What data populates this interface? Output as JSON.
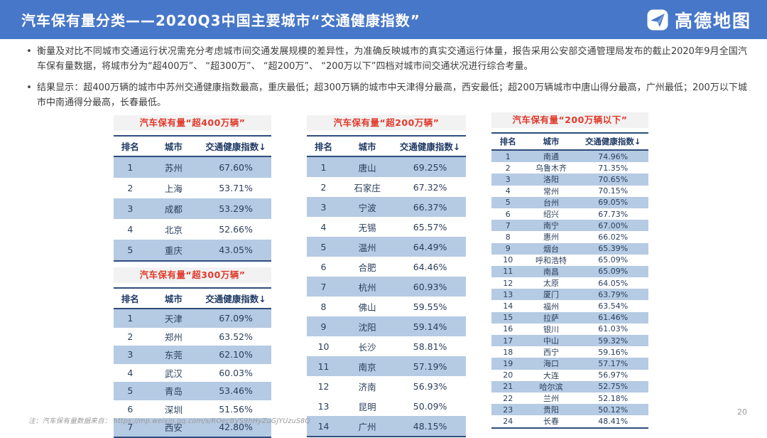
{
  "header": {
    "title": "汽车保有量分类——2020Q3中国主要城市“交通健康指数”",
    "logo_text": "高德地图"
  },
  "bullets": [
    "衡量及对比不同城市交通运行状况需充分考虑城市间交通发展规模的差异性，为准确反映城市的真实交通运行体量，报告采用公安部交通管理局发布的截止2020年9月全国汽车保有量数据，将城市分为“超400万”、 “超300万”、 “超200万”、 “200万以下”四档对城市间交通状况进行综合考量。",
    "结果显示：超400万辆的城市中苏州交通健康指数最高，重庆最低；超300万辆的城市中天津得分最高，西安最低；超200万辆城市中唐山得分最高，广州最低；200万以下城市中南通得分最高，长春最低。"
  ],
  "tables": [
    {
      "title": "汽车保有量“超400万辆”",
      "columns": [
        "排名",
        "城市",
        "交通健康指数↓"
      ],
      "rows": [
        [
          "1",
          "苏州",
          "67.60%"
        ],
        [
          "2",
          "上海",
          "53.71%"
        ],
        [
          "3",
          "成都",
          "53.29%"
        ],
        [
          "4",
          "北京",
          "52.66%"
        ],
        [
          "5",
          "重庆",
          "43.05%"
        ]
      ]
    },
    {
      "title": "汽车保有量“超300万辆”",
      "columns": [
        "排名",
        "城市",
        "交通健康指数↓"
      ],
      "rows": [
        [
          "1",
          "天津",
          "67.09%"
        ],
        [
          "2",
          "郑州",
          "63.52%"
        ],
        [
          "3",
          "东莞",
          "62.10%"
        ],
        [
          "4",
          "武汉",
          "60.03%"
        ],
        [
          "5",
          "青岛",
          "53.46%"
        ],
        [
          "6",
          "深圳",
          "51.56%"
        ],
        [
          "7",
          "西安",
          "42.80%"
        ]
      ]
    },
    {
      "title": "汽车保有量“超200万辆”",
      "columns": [
        "排名",
        "城市",
        "交通健康指数↓"
      ],
      "rows": [
        [
          "1",
          "唐山",
          "69.25%"
        ],
        [
          "2",
          "石家庄",
          "67.32%"
        ],
        [
          "3",
          "宁波",
          "66.37%"
        ],
        [
          "4",
          "无锡",
          "65.57%"
        ],
        [
          "5",
          "温州",
          "64.49%"
        ],
        [
          "6",
          "合肥",
          "64.46%"
        ],
        [
          "7",
          "杭州",
          "60.93%"
        ],
        [
          "8",
          "佛山",
          "59.55%"
        ],
        [
          "9",
          "沈阳",
          "59.14%"
        ],
        [
          "10",
          "长沙",
          "58.81%"
        ],
        [
          "11",
          "南京",
          "57.19%"
        ],
        [
          "12",
          "济南",
          "56.93%"
        ],
        [
          "13",
          "昆明",
          "50.09%"
        ],
        [
          "14",
          "广州",
          "48.15%"
        ]
      ]
    },
    {
      "title": "汽车保有量“200万辆以下”",
      "columns": [
        "排名",
        "城市",
        "交通健康指数↓"
      ],
      "rows": [
        [
          "1",
          "南通",
          "74.96%"
        ],
        [
          "2",
          "乌鲁木齐",
          "71.35%"
        ],
        [
          "3",
          "洛阳",
          "70.65%"
        ],
        [
          "4",
          "常州",
          "70.15%"
        ],
        [
          "5",
          "台州",
          "69.05%"
        ],
        [
          "6",
          "绍兴",
          "67.73%"
        ],
        [
          "7",
          "南宁",
          "67.00%"
        ],
        [
          "8",
          "惠州",
          "66.02%"
        ],
        [
          "9",
          "烟台",
          "65.39%"
        ],
        [
          "10",
          "呼和浩特",
          "65.09%"
        ],
        [
          "11",
          "南昌",
          "65.09%"
        ],
        [
          "12",
          "太原",
          "64.05%"
        ],
        [
          "13",
          "厦门",
          "63.79%"
        ],
        [
          "14",
          "福州",
          "63.54%"
        ],
        [
          "15",
          "拉萨",
          "61.46%"
        ],
        [
          "16",
          "银川",
          "61.03%"
        ],
        [
          "17",
          "中山",
          "59.32%"
        ],
        [
          "18",
          "西宁",
          "59.16%"
        ],
        [
          "19",
          "海口",
          "57.17%"
        ],
        [
          "20",
          "大连",
          "56.97%"
        ],
        [
          "21",
          "哈尔滨",
          "52.75%"
        ],
        [
          "22",
          "兰州",
          "52.18%"
        ],
        [
          "23",
          "贵阳",
          "50.12%"
        ],
        [
          "24",
          "长春",
          "48.41%"
        ]
      ]
    }
  ],
  "footer": {
    "note": "注：汽车保有量数据来自： https://mp.weixin.qq.com/s/ROecBVS9hHyZuGJYUzuS8Q",
    "page": "20"
  },
  "colors": {
    "header_bg": "#4777C8",
    "accent_red": "#E0392B",
    "navy": "#1F3A64",
    "row_shade": "#B5CAE3"
  }
}
